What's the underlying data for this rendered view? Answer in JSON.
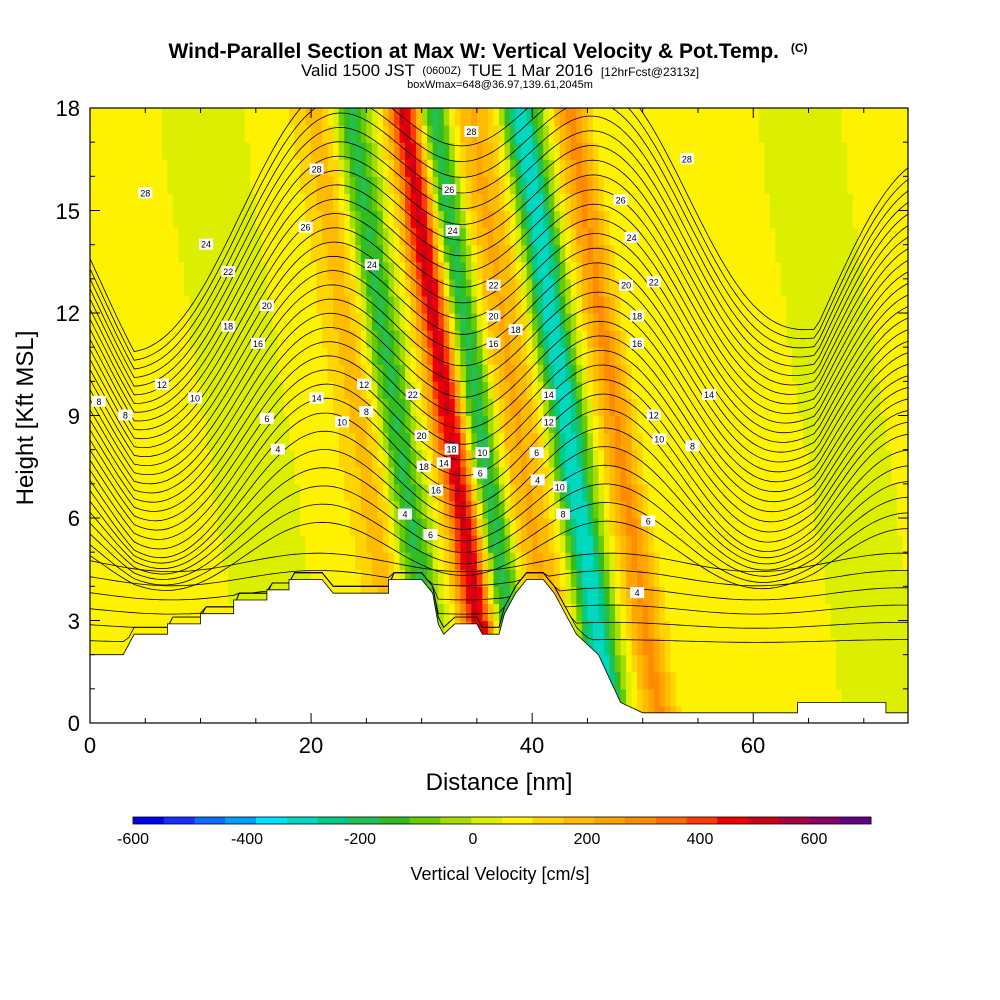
{
  "chart_data": {
    "type": "heatmap",
    "title": "Wind-Parallel Section at Max W: Vertical Velocity & Pot.Temp.",
    "title_mark": "(C)",
    "subtitle_parts": [
      "Valid 1500 JST",
      "(0600Z)",
      "TUE 1 Mar 2016",
      "[12hrFcst@2313z]"
    ],
    "subtitle2": "boxWmax=648@36.97,139.61,2045m",
    "xlabel": "Distance [nm]",
    "ylabel": "Height [Kft MSL]",
    "xlim": [
      0,
      74
    ],
    "ylim": [
      0,
      18
    ],
    "x_ticks": [
      "0",
      "20",
      "40",
      "60"
    ],
    "y_ticks": [
      "0",
      "3",
      "6",
      "9",
      "12",
      "15",
      "18"
    ],
    "colorbar": {
      "label": "Vertical Velocity [cm/s]",
      "tick_labels": [
        "-600",
        "-400",
        "-200",
        "0",
        "200",
        "400",
        "600"
      ],
      "range": [
        -650,
        700
      ],
      "colors": [
        "#0000ee",
        "#1a2dff",
        "#0b6cff",
        "#00a0ff",
        "#00e0ff",
        "#00d8c0",
        "#00cc88",
        "#22c055",
        "#33bb22",
        "#66cc00",
        "#a6dd00",
        "#dcef00",
        "#fff200",
        "#ffd400",
        "#ffbb00",
        "#ffa400",
        "#ff8c00",
        "#ff6a00",
        "#ff3a00",
        "#ee0000",
        "#cc0018",
        "#a80040",
        "#880066",
        "#660088"
      ]
    },
    "w_bands": [
      {
        "x": 14,
        "w": -60
      },
      {
        "x": 24.5,
        "w": 130
      },
      {
        "x": 27.5,
        "w": -260
      },
      {
        "x": 32.5,
        "w": 480
      },
      {
        "x": 35,
        "w": -300
      },
      {
        "x": 38.5,
        "w": 170
      },
      {
        "x": 43,
        "w": -400
      },
      {
        "x": 47.5,
        "w": 230
      },
      {
        "x": 59,
        "w": 20
      },
      {
        "x": 68,
        "w": -60
      }
    ],
    "terrain_kft": [
      [
        0,
        2.0
      ],
      [
        3,
        2.0
      ],
      [
        4,
        2.6
      ],
      [
        7,
        2.6
      ],
      [
        7,
        2.9
      ],
      [
        10,
        2.9
      ],
      [
        10,
        3.2
      ],
      [
        13,
        3.2
      ],
      [
        13,
        3.6
      ],
      [
        16,
        3.6
      ],
      [
        16,
        3.9
      ],
      [
        18,
        3.9
      ],
      [
        18,
        4.2
      ],
      [
        21,
        4.2
      ],
      [
        22,
        3.8
      ],
      [
        27,
        3.8
      ],
      [
        27,
        4.2
      ],
      [
        30,
        4.2
      ],
      [
        31,
        3.8
      ],
      [
        31.5,
        2.9
      ],
      [
        32,
        2.6
      ],
      [
        33,
        2.9
      ],
      [
        35,
        2.9
      ],
      [
        35.5,
        2.6
      ],
      [
        37,
        2.6
      ],
      [
        37.5,
        3.2
      ],
      [
        38.5,
        3.8
      ],
      [
        39.5,
        4.2
      ],
      [
        41,
        4.2
      ],
      [
        42,
        3.8
      ],
      [
        44,
        2.6
      ],
      [
        46,
        2.0
      ],
      [
        47,
        1.3
      ],
      [
        48,
        0.6
      ],
      [
        50,
        0.3
      ],
      [
        64,
        0.3
      ],
      [
        64,
        0.6
      ],
      [
        72,
        0.6
      ],
      [
        72,
        0.3
      ],
      [
        74,
        0.3
      ]
    ],
    "theta_labels": [
      {
        "t": "28",
        "x": 34.5,
        "y": 17.3
      },
      {
        "t": "28",
        "x": 20.5,
        "y": 16.2
      },
      {
        "t": "28",
        "x": 5,
        "y": 15.5
      },
      {
        "t": "28",
        "x": 54,
        "y": 16.5
      },
      {
        "t": "26",
        "x": 32.5,
        "y": 15.6
      },
      {
        "t": "26",
        "x": 19.5,
        "y": 14.5
      },
      {
        "t": "26",
        "x": 48,
        "y": 15.3
      },
      {
        "t": "24",
        "x": 10.5,
        "y": 14.0
      },
      {
        "t": "24",
        "x": 32.8,
        "y": 14.4
      },
      {
        "t": "24",
        "x": 25.5,
        "y": 13.4
      },
      {
        "t": "24",
        "x": 49,
        "y": 14.2
      },
      {
        "t": "22",
        "x": 12.5,
        "y": 13.2
      },
      {
        "t": "22",
        "x": 36.5,
        "y": 12.8
      },
      {
        "t": "22",
        "x": 51,
        "y": 12.9
      },
      {
        "t": "20",
        "x": 16,
        "y": 12.2
      },
      {
        "t": "20",
        "x": 36.5,
        "y": 11.9
      },
      {
        "t": "20",
        "x": 48.5,
        "y": 12.8
      },
      {
        "t": "18",
        "x": 12.5,
        "y": 11.6
      },
      {
        "t": "18",
        "x": 38.5,
        "y": 11.5
      },
      {
        "t": "18",
        "x": 49.5,
        "y": 11.9
      },
      {
        "t": "16",
        "x": 15.2,
        "y": 11.1
      },
      {
        "t": "16",
        "x": 36.5,
        "y": 11.1
      },
      {
        "t": "16",
        "x": 49.5,
        "y": 11.1
      },
      {
        "t": "12",
        "x": 6.5,
        "y": 9.9
      },
      {
        "t": "12",
        "x": 24.8,
        "y": 9.9
      },
      {
        "t": "14",
        "x": 20.5,
        "y": 9.5
      },
      {
        "t": "14",
        "x": 41.5,
        "y": 9.6
      },
      {
        "t": "14",
        "x": 56,
        "y": 9.6
      },
      {
        "t": "22",
        "x": 29.2,
        "y": 9.6
      },
      {
        "t": "10",
        "x": 9.5,
        "y": 9.5
      },
      {
        "t": "8",
        "x": 0.8,
        "y": 9.4
      },
      {
        "t": "8",
        "x": 3.2,
        "y": 9.0
      },
      {
        "t": "8",
        "x": 25,
        "y": 9.1
      },
      {
        "t": "12",
        "x": 51,
        "y": 9.0
      },
      {
        "t": "12",
        "x": 41.5,
        "y": 8.8
      },
      {
        "t": "10",
        "x": 22.8,
        "y": 8.8
      },
      {
        "t": "6",
        "x": 16,
        "y": 8.9
      },
      {
        "t": "20",
        "x": 30,
        "y": 8.4
      },
      {
        "t": "18",
        "x": 32.7,
        "y": 8.0
      },
      {
        "t": "10",
        "x": 51.5,
        "y": 8.3
      },
      {
        "t": "10",
        "x": 35.5,
        "y": 7.9
      },
      {
        "t": "6",
        "x": 40.4,
        "y": 7.9
      },
      {
        "t": "8",
        "x": 54.5,
        "y": 8.1
      },
      {
        "t": "4",
        "x": 17,
        "y": 8.0
      },
      {
        "t": "18",
        "x": 30.2,
        "y": 7.5
      },
      {
        "t": "14",
        "x": 32,
        "y": 7.6
      },
      {
        "t": "6",
        "x": 35.3,
        "y": 7.3
      },
      {
        "t": "4",
        "x": 40.5,
        "y": 7.1
      },
      {
        "t": "10",
        "x": 42.5,
        "y": 6.9
      },
      {
        "t": "16",
        "x": 31.3,
        "y": 6.8
      },
      {
        "t": "8",
        "x": 42.8,
        "y": 6.1
      },
      {
        "t": "4",
        "x": 28.5,
        "y": 6.1
      },
      {
        "t": "6",
        "x": 30.8,
        "y": 5.5
      },
      {
        "t": "6",
        "x": 50.5,
        "y": 5.9
      },
      {
        "t": "4",
        "x": 49.5,
        "y": 3.8
      }
    ]
  }
}
